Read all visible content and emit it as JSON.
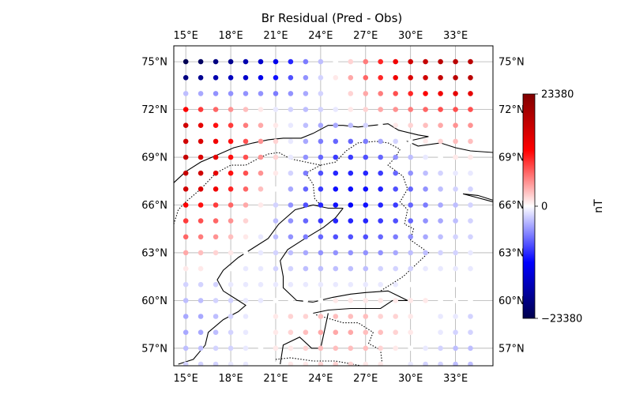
{
  "chart_data": {
    "type": "scatter",
    "title": "Br Residual (Pred - Obs)",
    "x_ticks": [
      "15°E",
      "18°E",
      "21°E",
      "24°E",
      "27°E",
      "30°E",
      "33°E"
    ],
    "x_tick_values": [
      15,
      18,
      21,
      24,
      27,
      30,
      33
    ],
    "y_ticks": [
      "57°N",
      "60°N",
      "63°N",
      "66°N",
      "69°N",
      "72°N",
      "75°N"
    ],
    "y_tick_values": [
      57,
      60,
      63,
      66,
      69,
      72,
      75
    ],
    "xlim": [
      14.2,
      35.5
    ],
    "ylim": [
      55.9,
      76
    ],
    "grid": true,
    "colorbar": {
      "label": "nT",
      "ticks": [
        "23380",
        "0",
        "−23380"
      ],
      "tick_values": [
        23380,
        0,
        -23380
      ],
      "vmin": -23380,
      "vmax": 23380,
      "colormap": "seismic"
    },
    "grid_points": {
      "lon_start": 15,
      "lon_step": 1,
      "lat_start": 56,
      "lat_step": 1,
      "lats_desc": [
        75,
        74,
        73,
        72,
        71,
        70,
        69,
        68,
        67,
        66,
        65,
        64,
        63,
        62,
        61,
        60,
        59,
        58,
        57,
        56
      ],
      "values_by_row": [
        [
          -23000,
          -22000,
          -20000,
          -19000,
          -17000,
          -15000,
          -13000,
          -10000,
          -6000,
          -3000,
          0,
          2000,
          6000,
          10000,
          13000,
          16000,
          17000,
          18000,
          18000,
          18000
        ],
        [
          -20000,
          -19000,
          -17000,
          -16000,
          -15000,
          -13000,
          -11000,
          -8000,
          -5000,
          -2000,
          1000,
          4000,
          7000,
          10000,
          13000,
          15000,
          16000,
          17000,
          18000,
          18000
        ],
        [
          -3000,
          -4000,
          -5000,
          -5000,
          -5000,
          -5000,
          -6000,
          -5000,
          -4000,
          -2000,
          0,
          2000,
          4000,
          6000,
          8000,
          10000,
          12000,
          13000,
          14000,
          14000
        ],
        [
          12000,
          9000,
          7000,
          5000,
          3000,
          1000,
          -1000,
          -2000,
          -3000,
          -2000,
          -1000,
          1000,
          2000,
          4000,
          5000,
          6000,
          7000,
          8000,
          8000,
          8000
        ],
        [
          16000,
          14000,
          11000,
          9000,
          6000,
          4000,
          1000,
          -1000,
          -3000,
          -4000,
          -4000,
          -3000,
          -2000,
          0,
          1000,
          2000,
          3000,
          4000,
          5000,
          5000
        ],
        [
          16000,
          15000,
          13000,
          11000,
          8000,
          5000,
          2000,
          -1000,
          -4000,
          -6000,
          -7000,
          -7000,
          -6000,
          -4000,
          -2000,
          0,
          1000,
          2000,
          3000,
          3000
        ],
        [
          17000,
          15000,
          14000,
          11000,
          8000,
          5000,
          2000,
          -1000,
          -5000,
          -7000,
          -9000,
          -9000,
          -8000,
          -7000,
          -5000,
          -3000,
          -1000,
          0,
          1000,
          1000
        ],
        [
          17000,
          16000,
          14000,
          11000,
          8000,
          5000,
          1000,
          -2000,
          -6000,
          -8000,
          -10000,
          -10000,
          -10000,
          -9000,
          -7000,
          -5000,
          -3000,
          -2000,
          -1000,
          -1000
        ],
        [
          16000,
          15000,
          13000,
          10000,
          7000,
          3000,
          0,
          -4000,
          -7000,
          -9000,
          -11000,
          -11000,
          -11000,
          -10000,
          -8000,
          -7000,
          -5000,
          -3000,
          -2000,
          -2000
        ],
        [
          12000,
          11000,
          9000,
          7000,
          4000,
          1000,
          -2000,
          -5000,
          -8000,
          -10000,
          -11000,
          -12000,
          -11000,
          -10000,
          -9000,
          -7000,
          -6000,
          -4000,
          -3000,
          -2000
        ],
        [
          9000,
          8000,
          7000,
          5000,
          2000,
          0,
          -3000,
          -5000,
          -7000,
          -9000,
          -10000,
          -10000,
          -10000,
          -9000,
          -8000,
          -7000,
          -5000,
          -4000,
          -3000,
          -2000
        ],
        [
          7000,
          6000,
          5000,
          3000,
          1000,
          -1000,
          -3000,
          -5000,
          -6000,
          -7000,
          -8000,
          -8000,
          -8000,
          -7000,
          -6000,
          -5000,
          -4000,
          -3000,
          -2000,
          -2000
        ],
        [
          4000,
          3000,
          2000,
          1000,
          0,
          -1000,
          -2000,
          -3000,
          -4000,
          -5000,
          -5000,
          -5000,
          -5000,
          -5000,
          -4000,
          -3000,
          -3000,
          -2000,
          -2000,
          -1000
        ],
        [
          1000,
          1000,
          0,
          0,
          -1000,
          -1000,
          -2000,
          -2000,
          -3000,
          -3000,
          -3000,
          -3000,
          -3000,
          -2000,
          -2000,
          -2000,
          -1000,
          -1000,
          -1000,
          -1000
        ],
        [
          -2000,
          -2000,
          -2000,
          -1000,
          -1000,
          -1000,
          -1000,
          -1000,
          -1000,
          -1000,
          -1000,
          -1000,
          -1000,
          -1000,
          -1000,
          0,
          0,
          0,
          0,
          0
        ],
        [
          -3000,
          -3000,
          -2000,
          -2000,
          -1000,
          -1000,
          0,
          0,
          0,
          0,
          1000,
          1000,
          1000,
          1000,
          1000,
          1000,
          1000,
          0,
          0,
          0
        ],
        [
          -4000,
          -4000,
          -3000,
          -2000,
          -1000,
          0,
          1000,
          2000,
          2000,
          3000,
          3000,
          3000,
          3000,
          2000,
          2000,
          1000,
          0,
          -1000,
          -1000,
          -2000
        ],
        [
          -4000,
          -4000,
          -3000,
          -2000,
          -1000,
          0,
          1000,
          2000,
          3000,
          4000,
          4000,
          4000,
          3000,
          3000,
          2000,
          1000,
          0,
          -1000,
          -2000,
          -2000
        ],
        [
          -3000,
          -3000,
          -2000,
          -2000,
          -1000,
          0,
          1000,
          1000,
          2000,
          3000,
          3000,
          3000,
          3000,
          2000,
          1000,
          0,
          -1000,
          -2000,
          -3000,
          -3000
        ],
        [
          -2000,
          -2000,
          -2000,
          -1000,
          -1000,
          0,
          0,
          1000,
          1000,
          2000,
          2000,
          2000,
          1000,
          1000,
          0,
          -1000,
          -2000,
          -2000,
          -3000,
          -3000
        ]
      ]
    },
    "coastline": [
      [
        14.2,
        67.4
      ],
      [
        15.0,
        68.1
      ],
      [
        16.0,
        68.7
      ],
      [
        17.0,
        69.1
      ],
      [
        18.2,
        69.6
      ],
      [
        19.5,
        69.9
      ],
      [
        20.5,
        70.1
      ],
      [
        21.5,
        70.2
      ],
      [
        22.7,
        70.2
      ],
      [
        23.5,
        70.5
      ],
      [
        24.5,
        71.0
      ],
      [
        25.5,
        71.0
      ],
      [
        26.5,
        70.9
      ],
      [
        27.5,
        71.0
      ],
      [
        28.5,
        71.1
      ],
      [
        29.2,
        70.7
      ],
      [
        30.5,
        70.4
      ],
      [
        31.2,
        70.3
      ],
      [
        29.8,
        70.0
      ],
      [
        30.5,
        69.7
      ],
      [
        32.0,
        69.9
      ],
      [
        33.0,
        69.6
      ],
      [
        34.0,
        69.4
      ],
      [
        35.5,
        69.3
      ]
    ],
    "kola_coast": [
      [
        35.5,
        66.2
      ],
      [
        34.3,
        66.5
      ],
      [
        33.5,
        66.7
      ],
      [
        34.5,
        66.6
      ],
      [
        35.5,
        66.3
      ]
    ],
    "sweden_finland_coast": [
      [
        25.5,
        65.8
      ],
      [
        24.5,
        65.8
      ],
      [
        23.5,
        66.0
      ],
      [
        22.3,
        65.7
      ],
      [
        21.2,
        64.8
      ],
      [
        20.5,
        63.9
      ],
      [
        19.5,
        63.3
      ],
      [
        18.5,
        62.7
      ],
      [
        17.5,
        61.9
      ],
      [
        17.1,
        61.3
      ],
      [
        17.5,
        60.6
      ],
      [
        18.5,
        60.0
      ],
      [
        19.0,
        59.7
      ],
      [
        18.5,
        59.3
      ],
      [
        17.5,
        58.8
      ],
      [
        16.5,
        58.0
      ],
      [
        16.3,
        57.2
      ],
      [
        15.5,
        56.3
      ],
      [
        14.5,
        56.0
      ]
    ],
    "finland_south_coast": [
      [
        23.5,
        59.9
      ],
      [
        24.8,
        60.2
      ],
      [
        26.0,
        60.4
      ],
      [
        27.0,
        60.5
      ],
      [
        28.5,
        60.6
      ],
      [
        29.8,
        60.0
      ],
      [
        28.8,
        60.0
      ],
      [
        28.0,
        59.5
      ],
      [
        26.0,
        59.5
      ],
      [
        24.5,
        59.4
      ],
      [
        23.5,
        59.2
      ]
    ],
    "finland_west_coast": [
      [
        25.5,
        65.8
      ],
      [
        25.0,
        65.2
      ],
      [
        24.2,
        64.6
      ],
      [
        22.8,
        63.8
      ],
      [
        21.8,
        63.2
      ],
      [
        21.3,
        62.5
      ],
      [
        21.5,
        61.5
      ],
      [
        21.5,
        60.8
      ],
      [
        22.4,
        60.0
      ],
      [
        23.5,
        59.9
      ]
    ],
    "estonia_coast": [
      [
        21.3,
        56.0
      ],
      [
        21.5,
        57.2
      ],
      [
        22.6,
        57.7
      ],
      [
        23.4,
        57.0
      ],
      [
        24.0,
        57.0
      ],
      [
        24.3,
        58.3
      ],
      [
        24.5,
        59.2
      ]
    ],
    "border_norway_sweden": [
      [
        14.2,
        64.8
      ],
      [
        14.5,
        65.7
      ],
      [
        15.0,
        66.2
      ],
      [
        16.0,
        67.0
      ],
      [
        17.0,
        68.0
      ],
      [
        18.0,
        68.5
      ],
      [
        19.0,
        68.5
      ],
      [
        20.0,
        69.0
      ],
      [
        20.5,
        69.2
      ],
      [
        21.2,
        69.3
      ],
      [
        22.0,
        68.9
      ],
      [
        23.0,
        68.7
      ],
      [
        24.0,
        68.5
      ],
      [
        25.0,
        68.7
      ],
      [
        25.7,
        69.4
      ],
      [
        26.5,
        69.9
      ],
      [
        27.7,
        70.0
      ],
      [
        28.5,
        69.9
      ],
      [
        29.3,
        69.5
      ],
      [
        29.0,
        69.0
      ],
      [
        28.5,
        68.5
      ],
      [
        29.5,
        67.8
      ],
      [
        29.8,
        67.0
      ],
      [
        29.3,
        66.2
      ],
      [
        29.8,
        65.7
      ],
      [
        29.6,
        64.8
      ],
      [
        30.2,
        64.5
      ],
      [
        30.0,
        63.8
      ],
      [
        31.2,
        63.0
      ],
      [
        29.5,
        61.5
      ],
      [
        28.5,
        60.9
      ],
      [
        28.0,
        60.6
      ]
    ],
    "border_sweden_finland": [
      [
        24.0,
        68.5
      ],
      [
        23.0,
        68.0
      ],
      [
        23.5,
        67.3
      ],
      [
        23.6,
        66.4
      ],
      [
        24.2,
        65.8
      ]
    ],
    "border_baltic": [
      [
        23.7,
        59.1
      ],
      [
        25.5,
        58.6
      ],
      [
        26.5,
        58.6
      ],
      [
        27.5,
        58.0
      ],
      [
        27.2,
        57.3
      ],
      [
        28.0,
        56.9
      ],
      [
        28.1,
        56.1
      ]
    ],
    "border_latvia": [
      [
        21.0,
        56.3
      ],
      [
        22.0,
        56.4
      ],
      [
        23.5,
        56.2
      ],
      [
        25.0,
        56.2
      ],
      [
        26.7,
        55.9
      ]
    ]
  }
}
